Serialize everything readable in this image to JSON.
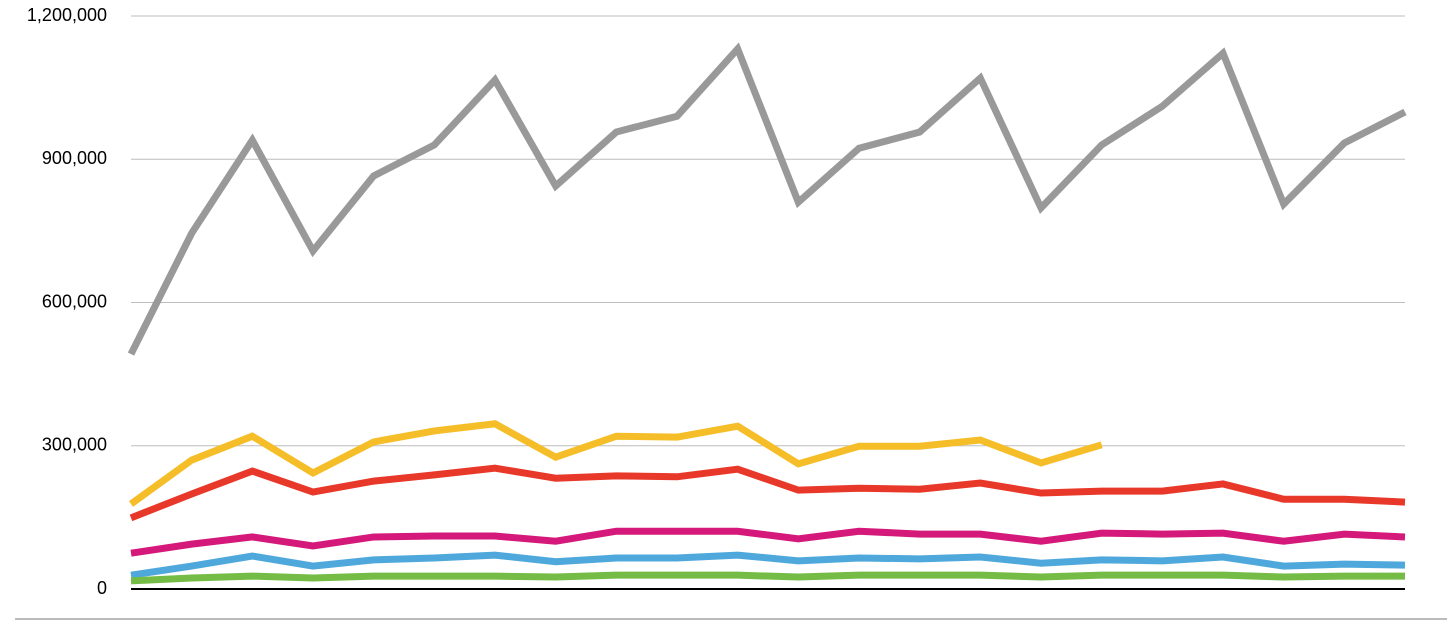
{
  "chart_data": {
    "type": "line",
    "categories": [
      null,
      null,
      null,
      null,
      null,
      null,
      null,
      null,
      null,
      null,
      null,
      null,
      null,
      null,
      null,
      null,
      null,
      null,
      null,
      null,
      null,
      null
    ],
    "series": [
      {
        "color": "#999999",
        "values": [
          492000,
          745000,
          940000,
          708000,
          865000,
          930000,
          1066000,
          844000,
          957000,
          990000,
          1131000,
          810000,
          923000,
          957000,
          1070000,
          798000,
          930000,
          1011000,
          1122000,
          806000,
          934000,
          999000
        ]
      },
      {
        "color": "#f5bd27",
        "values": [
          178000,
          270000,
          320000,
          243000,
          308000,
          331000,
          346000,
          276000,
          320000,
          318000,
          341000,
          262000,
          299000,
          299000,
          312000,
          264000,
          302000,
          null,
          null,
          null,
          null,
          null
        ]
      },
      {
        "color": "#e8382a",
        "values": [
          149000,
          199000,
          247000,
          203000,
          226000,
          239000,
          253000,
          232000,
          237000,
          235000,
          251000,
          207000,
          211000,
          209000,
          222000,
          201000,
          205000,
          205000,
          220000,
          188000,
          188000,
          182000
        ]
      },
      {
        "color": "#d4197a",
        "values": [
          75000,
          94000,
          109000,
          90000,
          109000,
          111000,
          111000,
          100000,
          121000,
          121000,
          121000,
          105000,
          121000,
          115000,
          115000,
          100000,
          117000,
          115000,
          117000,
          100000,
          115000,
          109000
        ]
      },
      {
        "color": "#4fa8dc",
        "values": [
          29000,
          48000,
          69000,
          48000,
          61000,
          65000,
          71000,
          57000,
          65000,
          65000,
          71000,
          59000,
          65000,
          63000,
          67000,
          54000,
          61000,
          59000,
          67000,
          48000,
          52000,
          50000
        ]
      },
      {
        "color": "#74bc45",
        "values": [
          17000,
          23000,
          27000,
          23000,
          27000,
          27000,
          27000,
          25000,
          29000,
          29000,
          29000,
          25000,
          29000,
          29000,
          29000,
          25000,
          29000,
          29000,
          29000,
          25000,
          27000,
          27000
        ]
      }
    ],
    "ylim": [
      0,
      1200000
    ],
    "yticks": [
      0,
      {
        "value": 300000,
        "label": "300,000"
      },
      {
        "value": 600000,
        "label": "600,000"
      },
      {
        "value": 900000,
        "label": "900,000"
      },
      {
        "value": 1200000,
        "label": "1,200,000"
      }
    ],
    "grid": true
  }
}
